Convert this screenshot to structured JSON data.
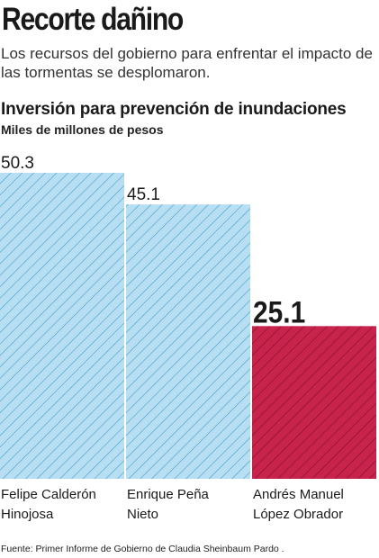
{
  "headline": "Recorte dañino",
  "subhead": "Los recursos del gobierno para enfrentar el impacto de las tormentas se desplomaron.",
  "source": "Fuente: Primer Informe de Gobierno de Claudia Sheinbaum Pardo .",
  "colors": {
    "blue_fill": "#b8def2",
    "blue_stroke": "#3a9fd0",
    "red_fill": "#c8234b",
    "red_stroke": "#7a1030"
  },
  "chart_data": {
    "type": "bar",
    "title": "Inversión para prevención de inundaciones",
    "subtitle": "Miles de millones de pesos",
    "categories": [
      [
        "Felipe Calderón",
        "Hinojosa"
      ],
      [
        "Enrique Peña",
        "Nieto"
      ],
      [
        "Andrés Manuel",
        "López Obrador"
      ]
    ],
    "values": [
      50.3,
      45.1,
      25.1
    ],
    "value_labels": [
      "50.3",
      "45.1",
      "25.1"
    ],
    "highlight_index": 2,
    "ylim": [
      0,
      50.3
    ],
    "grid": false,
    "legend": "none"
  }
}
